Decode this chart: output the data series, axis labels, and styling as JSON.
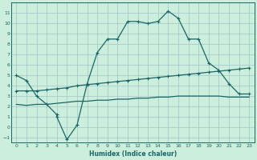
{
  "title": "",
  "xlabel": "Humidex (Indice chaleur)",
  "background_color": "#cceedd",
  "grid_color": "#aacccc",
  "line_color": "#1a6666",
  "ylim": [
    -1.5,
    12.0
  ],
  "xlim": [
    -0.5,
    23.5
  ],
  "yticks": [
    -1,
    0,
    1,
    2,
    3,
    4,
    5,
    6,
    7,
    8,
    9,
    10,
    11
  ],
  "xticks": [
    0,
    1,
    2,
    3,
    4,
    5,
    6,
    7,
    8,
    9,
    10,
    11,
    12,
    13,
    14,
    15,
    16,
    17,
    18,
    19,
    20,
    21,
    22,
    23
  ],
  "line1_x": [
    0,
    1,
    2,
    3,
    4,
    4,
    5,
    6,
    7,
    8,
    9,
    10,
    11,
    12,
    13,
    14,
    15,
    16,
    17,
    18,
    19,
    20,
    21,
    22,
    23
  ],
  "line1_y": [
    5.0,
    4.5,
    3.0,
    2.2,
    1.2,
    1.0,
    -1.2,
    0.2,
    4.2,
    7.2,
    8.5,
    8.5,
    10.2,
    10.2,
    10.0,
    10.2,
    11.2,
    10.5,
    8.5,
    8.5,
    6.2,
    5.5,
    4.2,
    3.2,
    3.2
  ],
  "line2_x": [
    0,
    1,
    2,
    3,
    4,
    5,
    6,
    7,
    8,
    9,
    10,
    11,
    12,
    13,
    14,
    15,
    16,
    17,
    18,
    19,
    20,
    21,
    22,
    23
  ],
  "line2_y": [
    3.5,
    3.5,
    3.5,
    3.6,
    3.7,
    3.8,
    4.0,
    4.1,
    4.2,
    4.3,
    4.4,
    4.5,
    4.6,
    4.7,
    4.8,
    4.9,
    5.0,
    5.1,
    5.2,
    5.3,
    5.4,
    5.5,
    5.6,
    5.7
  ],
  "line3_x": [
    0,
    1,
    2,
    3,
    4,
    5,
    6,
    7,
    8,
    9,
    10,
    11,
    12,
    13,
    14,
    15,
    16,
    17,
    18,
    19,
    20,
    21,
    22,
    23
  ],
  "line3_y": [
    2.2,
    2.1,
    2.2,
    2.2,
    2.3,
    2.4,
    2.5,
    2.5,
    2.6,
    2.6,
    2.7,
    2.7,
    2.8,
    2.8,
    2.9,
    2.9,
    3.0,
    3.0,
    3.0,
    3.0,
    3.0,
    2.9,
    2.9,
    2.9
  ]
}
